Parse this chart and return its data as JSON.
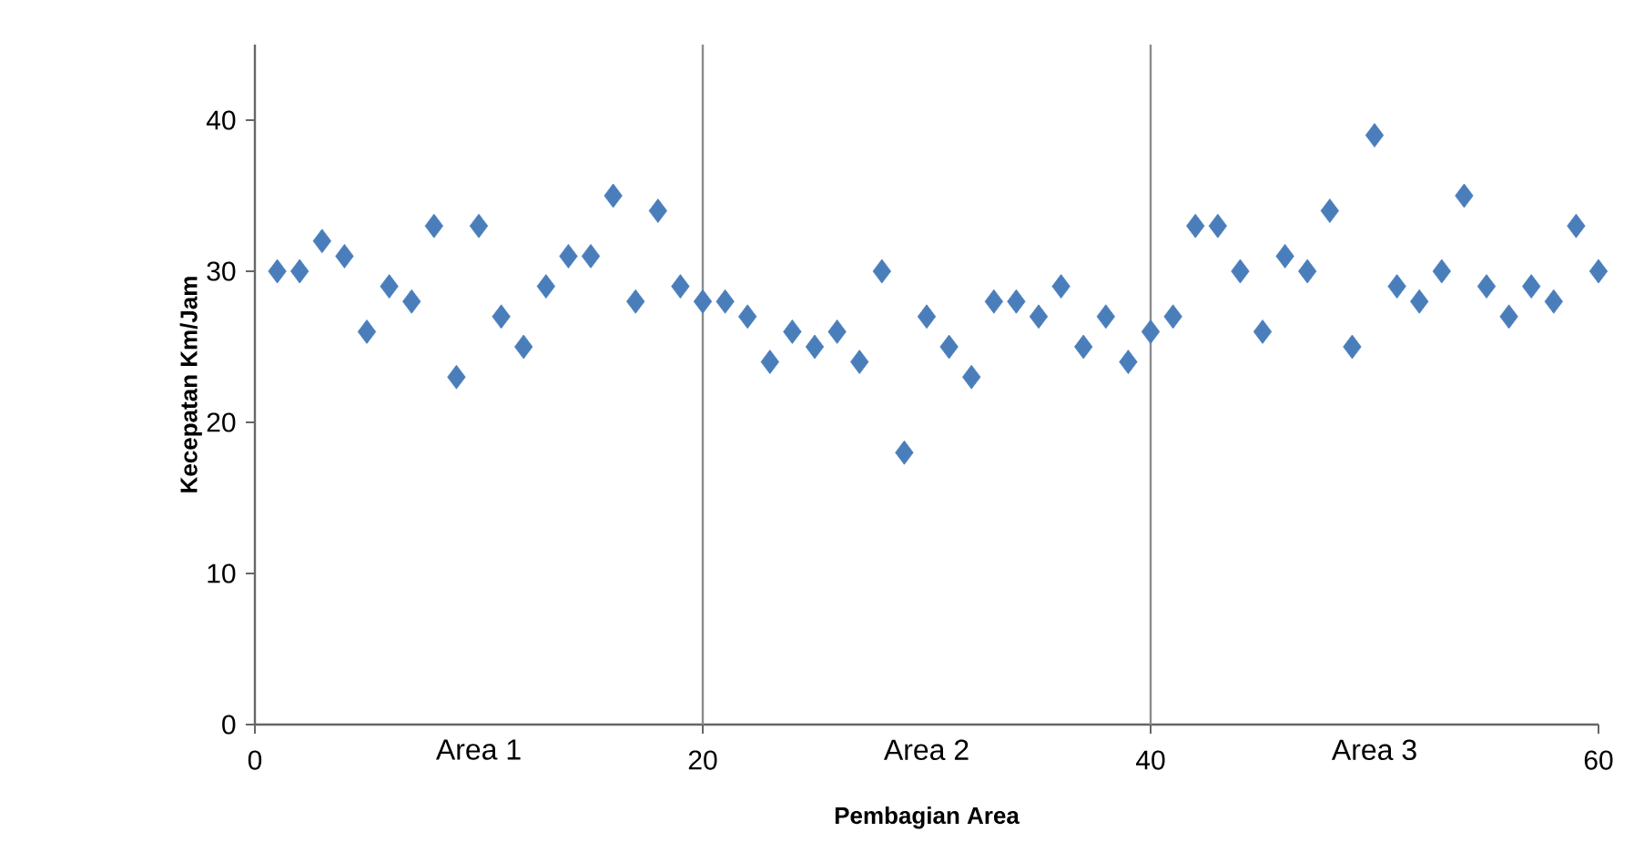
{
  "chart_data": {
    "type": "scatter",
    "xlabel": "Pembagian Area",
    "ylabel": "Kecepatan Km/Jam",
    "x": [
      1,
      2,
      3,
      4,
      5,
      6,
      7,
      8,
      9,
      10,
      11,
      12,
      13,
      14,
      15,
      16,
      17,
      18,
      19,
      20,
      21,
      22,
      23,
      24,
      25,
      26,
      27,
      28,
      29,
      30,
      31,
      32,
      33,
      34,
      35,
      36,
      37,
      38,
      39,
      40,
      41,
      42,
      43,
      44,
      45,
      46,
      47,
      48,
      49,
      50,
      51,
      52,
      53,
      54,
      55,
      56,
      57,
      58,
      59,
      60
    ],
    "values": [
      30,
      30,
      32,
      31,
      26,
      29,
      28,
      33,
      23,
      33,
      27,
      25,
      29,
      31,
      31,
      35,
      28,
      34,
      29,
      28,
      28,
      27,
      24,
      26,
      25,
      26,
      24,
      30,
      18,
      27,
      25,
      23,
      28,
      28,
      27,
      29,
      25,
      27,
      24,
      26,
      27,
      33,
      33,
      30,
      26,
      31,
      30,
      34,
      25,
      39,
      29,
      28,
      30,
      35,
      29,
      27,
      29,
      28,
      33,
      30
    ],
    "color": "#4a7ebb",
    "marker": "diamond",
    "grid": false,
    "xlim": [
      0,
      60
    ],
    "xticks": [
      0,
      20,
      40,
      60
    ],
    "ylim": [
      0,
      45
    ],
    "yticks": [
      0,
      10,
      20,
      30,
      40
    ],
    "ref_lines": [
      {
        "axis": "x",
        "value": 20,
        "color": "#8c8c8c"
      },
      {
        "axis": "x",
        "value": 40,
        "color": "#8c8c8c"
      }
    ],
    "annotations": [
      "Area 1",
      "Area 2",
      "Area 3"
    ]
  }
}
